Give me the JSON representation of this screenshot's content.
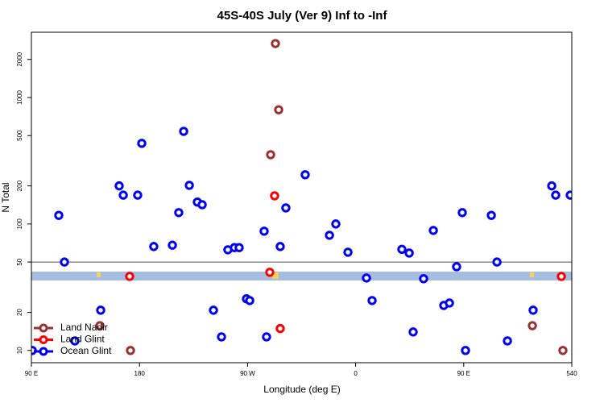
{
  "chart_data": {
    "type": "scatter",
    "title": "45S-40S July (Ver 9)   Inf to -Inf",
    "x_label": "Longitude (deg E)",
    "y_label": "N Total",
    "xlim": [
      90,
      540
    ],
    "xticks": [
      {
        "value": 90,
        "label": "90 E"
      },
      180,
      {
        "value": 270,
        "label": "90 W"
      },
      {
        "value": 360,
        "label": "0"
      },
      {
        "value": 450,
        "label": "90 E"
      },
      540
    ],
    "ylim": [
      8,
      3280
    ],
    "yticks": [
      10,
      20,
      50,
      100,
      200,
      500,
      1000,
      2000
    ],
    "ylog": true,
    "reference_line": 50,
    "legend": "bottom-left",
    "series": [
      {
        "name": "Land Nadir",
        "color": "#993333",
        "x": [
          293.2,
          295.9,
          289.2,
          147,
          172.5,
          507.2,
          532.6
        ],
        "values": [
          2670,
          800,
          353,
          15.7,
          10,
          15.7,
          10
        ]
      },
      {
        "name": "Land Glint",
        "color": "#ff0000",
        "x": [
          292.5,
          171.8,
          288.5,
          297.2,
          531.3
        ],
        "values": [
          167,
          38.5,
          41.5,
          14.9,
          38.5
        ]
      },
      {
        "name": "Ocean Glint",
        "color": "#0000ee",
        "x": [
          90.7,
          112.8,
          117.5,
          126.2,
          147.7,
          163.1,
          166.5,
          178.5,
          181.9,
          191.9,
          207.4,
          212.7,
          216.8,
          221.5,
          228.2,
          232.2,
          241.6,
          248.3,
          253.6,
          259,
          263,
          269.1,
          271.8,
          283.8,
          285.8,
          297.2,
          301.9,
          318,
          338.2,
          343.5,
          353.6,
          369,
          373.7,
          398.5,
          404.6,
          407.9,
          416.6,
          424.7,
          433.4,
          438.1,
          444.1,
          448.8,
          451.5,
          473,
          477.7,
          486.4,
          507.8,
          523.3,
          526.6,
          538.7
        ],
        "values": [
          10,
          117,
          50,
          11.9,
          20.8,
          200,
          169,
          169,
          434,
          66.3,
          68,
          123,
          540,
          202,
          149,
          142,
          20.8,
          12.8,
          62.5,
          65,
          65,
          25.6,
          24.8,
          87.7,
          12.8,
          66.3,
          134,
          245,
          81.4,
          100,
          59.8,
          37.4,
          24.8,
          63,
          58.9,
          14,
          36.9,
          88.9,
          22.7,
          23.7,
          45.9,
          123,
          10,
          117,
          50,
          11.9,
          20.8,
          200,
          169,
          169
        ]
      }
    ]
  }
}
